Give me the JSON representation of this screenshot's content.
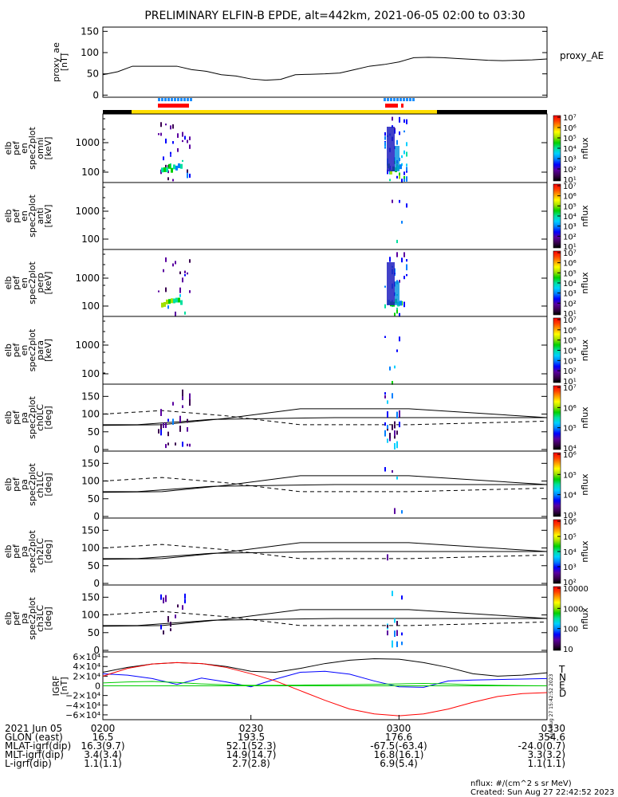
{
  "title": "PRELIMINARY ELFIN-B EPDE, alt=442km, 2021-06-05 02:00 to 03:30",
  "colors": {
    "status_bar": "#ffdd00",
    "sci_zone": "#ff0000",
    "att_marks": "#1e90ff",
    "grf_t": "#000000",
    "grf_n": "#0000ff",
    "grf_e": "#00cc00",
    "grf_d": "#ff0000"
  },
  "x_range_min": [
    0,
    90
  ],
  "chart_data": [
    {
      "type": "line",
      "id": "proxy_ae",
      "ylabel": [
        "proxy_ae",
        "[nT]"
      ],
      "legend": "proxy_AE",
      "ylim": [
        -5,
        160
      ],
      "yticks": [
        "0",
        "50",
        "100",
        "150"
      ],
      "ytick_values": [
        0,
        50,
        100,
        150
      ],
      "x_min": [
        0,
        3,
        6,
        9,
        12,
        15,
        18,
        21,
        24,
        27,
        30,
        33,
        36,
        39,
        42,
        45,
        48,
        51,
        54,
        57,
        60,
        63,
        66,
        69,
        72,
        75,
        78,
        81,
        84,
        87,
        90
      ],
      "values": [
        48,
        55,
        68,
        68,
        68,
        68,
        60,
        56,
        48,
        45,
        38,
        35,
        37,
        48,
        49,
        50,
        52,
        60,
        68,
        72,
        78,
        88,
        89,
        88,
        86,
        84,
        82,
        81,
        82,
        83,
        85
      ]
    },
    {
      "type": "heatmap",
      "id": "omni",
      "ylabel": [
        "elb",
        "pef",
        "en",
        "spec2plot",
        "omni",
        "[keV]"
      ],
      "ylog": true,
      "yticks": [
        "100",
        "1000"
      ],
      "cbar_label": "nflux",
      "cbar_ticks": [
        "10¹",
        "10²",
        "10³",
        "10⁴",
        "10⁵",
        "10⁶",
        "10⁷"
      ]
    },
    {
      "type": "heatmap",
      "id": "anti",
      "ylabel": [
        "elb",
        "pef",
        "en",
        "spec2plot",
        "anti",
        "[keV]"
      ],
      "ylog": true,
      "yticks": [
        "100",
        "1000"
      ],
      "cbar_label": "nflux",
      "cbar_ticks": [
        "10¹",
        "10²",
        "10³",
        "10⁴",
        "10⁵",
        "10⁶",
        "10⁷"
      ]
    },
    {
      "type": "heatmap",
      "id": "perp",
      "ylabel": [
        "elb",
        "pef",
        "en",
        "spec2plot",
        "perp",
        "[keV]"
      ],
      "ylog": true,
      "yticks": [
        "100",
        "1000"
      ],
      "cbar_label": "nflux",
      "cbar_ticks": [
        "10¹",
        "10²",
        "10³",
        "10⁴",
        "10⁵",
        "10⁶",
        "10⁷"
      ]
    },
    {
      "type": "heatmap",
      "id": "para",
      "ylabel": [
        "elb",
        "pef",
        "en",
        "spec2plot",
        "para",
        "[keV]"
      ],
      "ylog": true,
      "yticks": [
        "100",
        "1000"
      ],
      "cbar_label": "nflux",
      "cbar_ticks": [
        "10¹",
        "10²",
        "10³",
        "10⁴",
        "10⁵",
        "10⁶",
        "10⁷"
      ]
    },
    {
      "type": "heatmap",
      "id": "ch0",
      "ylabel": [
        "elb",
        "pef",
        "pa",
        "spec2plot",
        "ch0LC",
        "[deg]"
      ],
      "ylim": [
        0,
        180
      ],
      "yticks": [
        "0",
        "50",
        "100",
        "150"
      ],
      "ytick_values": [
        0,
        50,
        100,
        150
      ],
      "cbar_label": "nflux",
      "cbar_ticks": [
        "10⁴",
        "10⁵",
        "10⁶",
        "10⁷"
      ]
    },
    {
      "type": "heatmap",
      "id": "ch1",
      "ylabel": [
        "elb",
        "pef",
        "pa",
        "spec2plot",
        "ch1LC",
        "[deg]"
      ],
      "ylim": [
        0,
        180
      ],
      "yticks": [
        "0",
        "50",
        "100",
        "150"
      ],
      "ytick_values": [
        0,
        50,
        100,
        150
      ],
      "cbar_label": "nflux",
      "cbar_ticks": [
        "10³",
        "10⁴",
        "10⁵",
        "10⁶"
      ]
    },
    {
      "type": "heatmap",
      "id": "ch2",
      "ylabel": [
        "elb",
        "pef",
        "pa",
        "spec2plot",
        "ch2LC",
        "[deg]"
      ],
      "ylim": [
        0,
        180
      ],
      "yticks": [
        "0",
        "50",
        "100",
        "150"
      ],
      "ytick_values": [
        0,
        50,
        100,
        150
      ],
      "cbar_label": "nflux",
      "cbar_ticks": [
        "10²",
        "10³",
        "10⁴",
        "10⁵",
        "10⁶"
      ]
    },
    {
      "type": "heatmap",
      "id": "ch3",
      "ylabel": [
        "elb",
        "pef",
        "pa",
        "spec2plot",
        "ch3LC",
        "[deg]"
      ],
      "ylim": [
        0,
        180
      ],
      "yticks": [
        "0",
        "50",
        "100",
        "150"
      ],
      "ytick_values": [
        0,
        50,
        100,
        150
      ],
      "cbar_label": "nflux",
      "cbar_ticks": [
        "10",
        "100",
        "1000",
        "10000"
      ]
    },
    {
      "type": "line",
      "id": "igrf",
      "ylabel": [
        "IGRF",
        "[nT]"
      ],
      "ylim": [
        -70000,
        70000
      ],
      "yticks": [
        "6×10⁴",
        "4×10⁴",
        "2×10⁴",
        "0",
        "−2×10⁴",
        "−4×10⁴",
        "−6×10⁴"
      ],
      "ytick_values": [
        60000,
        40000,
        20000,
        0,
        -20000,
        -40000,
        -60000
      ],
      "x_min": [
        0,
        5,
        10,
        15,
        20,
        25,
        30,
        35,
        40,
        45,
        50,
        55,
        60,
        65,
        70,
        75,
        80,
        85,
        90
      ],
      "series": [
        {
          "name": "T",
          "values": [
            28000,
            38000,
            45000,
            48000,
            46000,
            40000,
            30000,
            28000,
            36000,
            46000,
            53000,
            56000,
            55000,
            48000,
            38000,
            25000,
            20000,
            22000,
            27000
          ]
        },
        {
          "name": "N",
          "values": [
            25000,
            22000,
            15000,
            3000,
            16000,
            8000,
            -2000,
            14000,
            28000,
            30000,
            24000,
            10000,
            -2000,
            -3000,
            10000,
            12000,
            13000,
            14000,
            15000
          ]
        },
        {
          "name": "E",
          "values": [
            6000,
            8000,
            9000,
            7000,
            4000,
            2000,
            1000,
            1000,
            1500,
            2000,
            2500,
            3000,
            4000,
            5000,
            4000,
            2000,
            1000,
            500,
            0
          ]
        },
        {
          "name": "D",
          "values": [
            20000,
            36000,
            45000,
            48000,
            46000,
            38000,
            25000,
            10000,
            -10000,
            -30000,
            -48000,
            -58000,
            -62000,
            -58000,
            -48000,
            -34000,
            -22000,
            -16000,
            -14000
          ]
        }
      ],
      "side_text": "Sun Aug 27 15:42:52 2023"
    }
  ],
  "axis_rows": [
    {
      "label": "2021 Jun 05",
      "values": [
        "0200",
        "0230",
        "0300",
        "0330"
      ]
    },
    {
      "label": "GLON (east)",
      "values": [
        "16.5",
        "193.5",
        "176.6",
        "354.6"
      ]
    },
    {
      "label": "MLAT-igrf(dip)",
      "values": [
        "16.3(9.7)",
        "52.1(52.3)",
        "-67.5(-63.4)",
        "-24.0(0.7)"
      ]
    },
    {
      "label": "MLT-igrf(dip)",
      "values": [
        "3.4(3.4)",
        "14.9(14.7)",
        "16.8(16.1)",
        "3.3(3.2)"
      ]
    },
    {
      "label": "L-igrf(dip)",
      "values": [
        "1.1(1.1)",
        "2.7(2.8)",
        "6.9(5.4)",
        "1.1(1.1)"
      ]
    }
  ],
  "footer": {
    "units": "nflux: #/(cm^2 s sr MeV)",
    "created": "Created: Sun Aug 27 22:42:52 2023"
  }
}
